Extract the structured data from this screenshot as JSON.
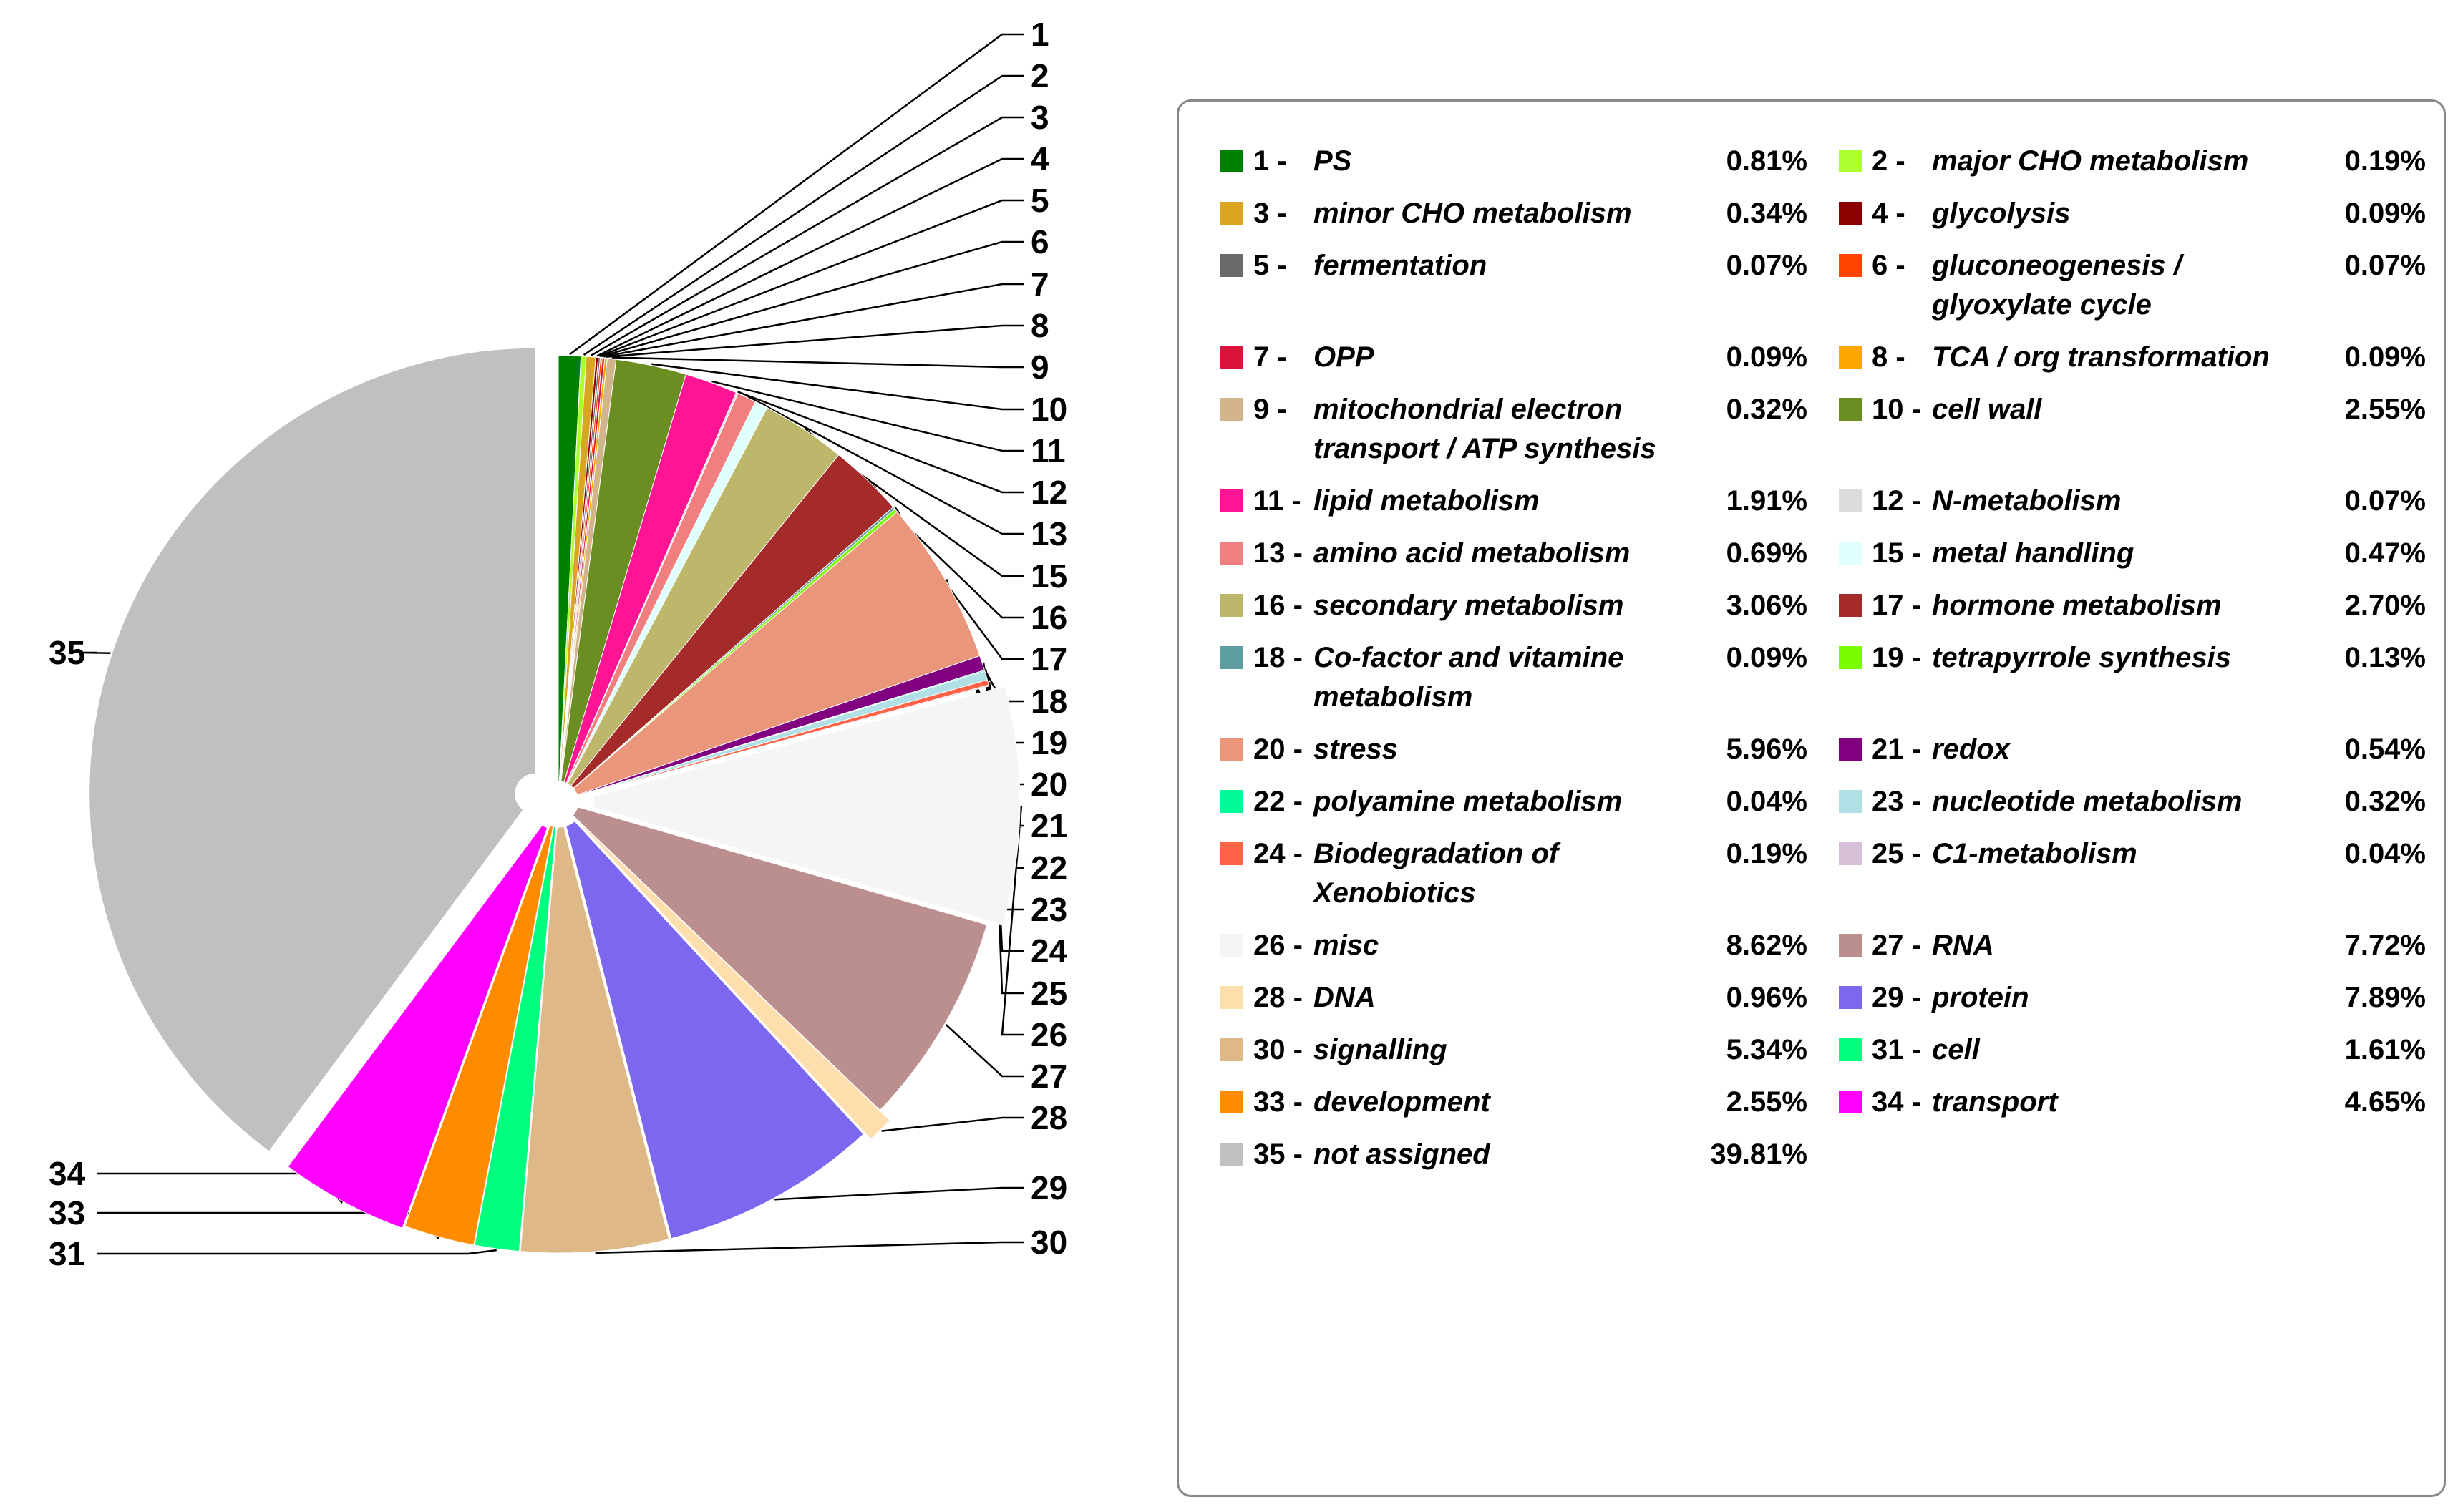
{
  "chart_data": {
    "type": "pie",
    "title": "",
    "slices": [
      {
        "num": "1",
        "label": "PS",
        "value": 0.81,
        "value_text": "0.81%",
        "color": "#008000"
      },
      {
        "num": "2",
        "label": "major CHO metabolism",
        "value": 0.19,
        "value_text": "0.19%",
        "color": "#adff2f"
      },
      {
        "num": "3",
        "label": "minor CHO metabolism",
        "value": 0.34,
        "value_text": "0.34%",
        "color": "#daa520"
      },
      {
        "num": "4",
        "label": "glycolysis",
        "value": 0.09,
        "value_text": "0.09%",
        "color": "#8b0000"
      },
      {
        "num": "5",
        "label": "fermentation",
        "value": 0.07,
        "value_text": "0.07%",
        "color": "#696969"
      },
      {
        "num": "6",
        "label": "gluconeogenesis / glyoxylate cycle",
        "value": 0.07,
        "value_text": "0.07%",
        "color": "#ff4500"
      },
      {
        "num": "7",
        "label": "OPP",
        "value": 0.09,
        "value_text": "0.09%",
        "color": "#dc143c"
      },
      {
        "num": "8",
        "label": "TCA / org transformation",
        "value": 0.09,
        "value_text": "0.09%",
        "color": "#ffa500"
      },
      {
        "num": "9",
        "label": "mitochondrial electron transport / ATP synthesis",
        "value": 0.32,
        "value_text": "0.32%",
        "color": "#d2b48c"
      },
      {
        "num": "10",
        "label": "cell wall",
        "value": 2.55,
        "value_text": "2.55%",
        "color": "#6b8e23"
      },
      {
        "num": "11",
        "label": "lipid metabolism",
        "value": 1.91,
        "value_text": "1.91%",
        "color": "#ff1493"
      },
      {
        "num": "12",
        "label": "N-metabolism",
        "value": 0.07,
        "value_text": "0.07%",
        "color": "#dcdcdc"
      },
      {
        "num": "13",
        "label": "amino acid metabolism",
        "value": 0.69,
        "value_text": "0.69%",
        "color": "#f08080"
      },
      {
        "num": "15",
        "label": "metal handling",
        "value": 0.47,
        "value_text": "0.47%",
        "color": "#e0ffff"
      },
      {
        "num": "16",
        "label": "secondary metabolism",
        "value": 3.06,
        "value_text": "3.06%",
        "color": "#bdb76b"
      },
      {
        "num": "17",
        "label": "hormone metabolism",
        "value": 2.7,
        "value_text": "2.70%",
        "color": "#a52a2a"
      },
      {
        "num": "18",
        "label": "Co-factor and vitamine metabolism",
        "value": 0.09,
        "value_text": "0.09%",
        "color": "#5f9ea0"
      },
      {
        "num": "19",
        "label": "tetrapyrrole synthesis",
        "value": 0.13,
        "value_text": "0.13%",
        "color": "#7cfc00"
      },
      {
        "num": "20",
        "label": "stress",
        "value": 5.96,
        "value_text": "5.96%",
        "color": "#e9967a"
      },
      {
        "num": "21",
        "label": "redox",
        "value": 0.54,
        "value_text": "0.54%",
        "color": "#800080"
      },
      {
        "num": "22",
        "label": "polyamine metabolism",
        "value": 0.04,
        "value_text": "0.04%",
        "color": "#00fa9a"
      },
      {
        "num": "23",
        "label": "nucleotide metabolism",
        "value": 0.32,
        "value_text": "0.32%",
        "color": "#b0e0e6"
      },
      {
        "num": "24",
        "label": "Biodegradation of Xenobiotics",
        "value": 0.19,
        "value_text": "0.19%",
        "color": "#ff6347"
      },
      {
        "num": "25",
        "label": "C1-metabolism",
        "value": 0.04,
        "value_text": "0.04%",
        "color": "#d8bfd8"
      },
      {
        "num": "26",
        "label": "misc",
        "value": 8.62,
        "value_text": "8.62%",
        "color": "#f5f5f5"
      },
      {
        "num": "27",
        "label": "RNA",
        "value": 7.72,
        "value_text": "7.72%",
        "color": "#bc8f8f"
      },
      {
        "num": "28",
        "label": "DNA",
        "value": 0.96,
        "value_text": "0.96%",
        "color": "#ffdead"
      },
      {
        "num": "29",
        "label": "protein",
        "value": 7.89,
        "value_text": "7.89%",
        "color": "#7b68ee"
      },
      {
        "num": "30",
        "label": "signalling",
        "value": 5.34,
        "value_text": "5.34%",
        "color": "#deb887"
      },
      {
        "num": "31",
        "label": "cell",
        "value": 1.61,
        "value_text": "1.61%",
        "color": "#00ff7f"
      },
      {
        "num": "33",
        "label": "development",
        "value": 2.55,
        "value_text": "2.55%",
        "color": "#ff8c00"
      },
      {
        "num": "34",
        "label": "transport",
        "value": 4.65,
        "value_text": "4.65%",
        "color": "#ff00ff"
      },
      {
        "num": "35",
        "label": "not assigned",
        "value": 39.81,
        "value_text": "39.81%",
        "color": "#c0c0c0"
      }
    ],
    "legend_position": "right"
  }
}
